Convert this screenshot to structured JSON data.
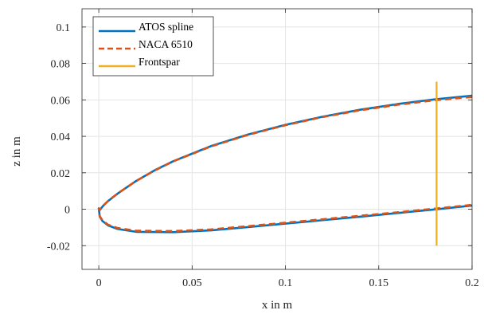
{
  "chart_data": {
    "type": "line",
    "title": "",
    "xlabel": "x in m",
    "ylabel": "z in m",
    "xlim": [
      -0.009,
      0.2
    ],
    "ylim": [
      -0.033,
      0.11
    ],
    "xticks": [
      0,
      0.05,
      0.1,
      0.15,
      0.2
    ],
    "xtick_labels": [
      "0",
      "0.05",
      "0.1",
      "0.15",
      "0.2"
    ],
    "yticks": [
      -0.02,
      0,
      0.02,
      0.04,
      0.06,
      0.08,
      0.1
    ],
    "ytick_labels": [
      "-0.02",
      "0",
      "0.02",
      "0.04",
      "0.06",
      "0.08",
      "0.1"
    ],
    "grid": true,
    "legend_position": "top-left",
    "series": [
      {
        "name": "ATOS spline",
        "color": "#0072BD",
        "style": "solid",
        "x": [
          0.2,
          0.18,
          0.16,
          0.14,
          0.12,
          0.1,
          0.08,
          0.06,
          0.04,
          0.03,
          0.02,
          0.01,
          0.005,
          0.002,
          0.0005,
          0,
          0.0005,
          0.002,
          0.005,
          0.01,
          0.02,
          0.04,
          0.06,
          0.08,
          0.1,
          0.12,
          0.14,
          0.16,
          0.18,
          0.2
        ],
        "y": [
          0.0623,
          0.0603,
          0.0577,
          0.0546,
          0.0508,
          0.0463,
          0.041,
          0.0346,
          0.0264,
          0.0214,
          0.0155,
          0.0085,
          0.0045,
          0.0015,
          -0.0005,
          0.0005,
          -0.004,
          -0.0065,
          -0.0089,
          -0.0108,
          -0.0124,
          -0.0126,
          -0.0116,
          -0.0098,
          -0.0079,
          -0.006,
          -0.0041,
          -0.0021,
          -0.0001,
          0.002
        ]
      },
      {
        "name": "NACA 6510",
        "color": "#D95319",
        "style": "dashed",
        "x": [
          0.2,
          0.18,
          0.16,
          0.14,
          0.12,
          0.1,
          0.08,
          0.06,
          0.04,
          0.03,
          0.02,
          0.01,
          0.005,
          0.002,
          0.0005,
          0,
          0.0005,
          0.002,
          0.005,
          0.01,
          0.02,
          0.04,
          0.06,
          0.08,
          0.1,
          0.12,
          0.14,
          0.16,
          0.18,
          0.2
        ],
        "y": [
          0.0616,
          0.0598,
          0.0573,
          0.0543,
          0.0506,
          0.0461,
          0.0408,
          0.0344,
          0.0263,
          0.0213,
          0.0155,
          0.0086,
          0.0046,
          0.0016,
          -0.0004,
          0.0005,
          -0.0038,
          -0.0062,
          -0.0085,
          -0.0103,
          -0.0118,
          -0.012,
          -0.0111,
          -0.0093,
          -0.0074,
          -0.0055,
          -0.0036,
          -0.0017,
          0.0003,
          0.0024
        ]
      },
      {
        "name": "Frontspar",
        "color": "#EDB120",
        "style": "solid",
        "x": [
          0.181,
          0.181
        ],
        "y": [
          0.07,
          -0.02
        ]
      }
    ]
  }
}
